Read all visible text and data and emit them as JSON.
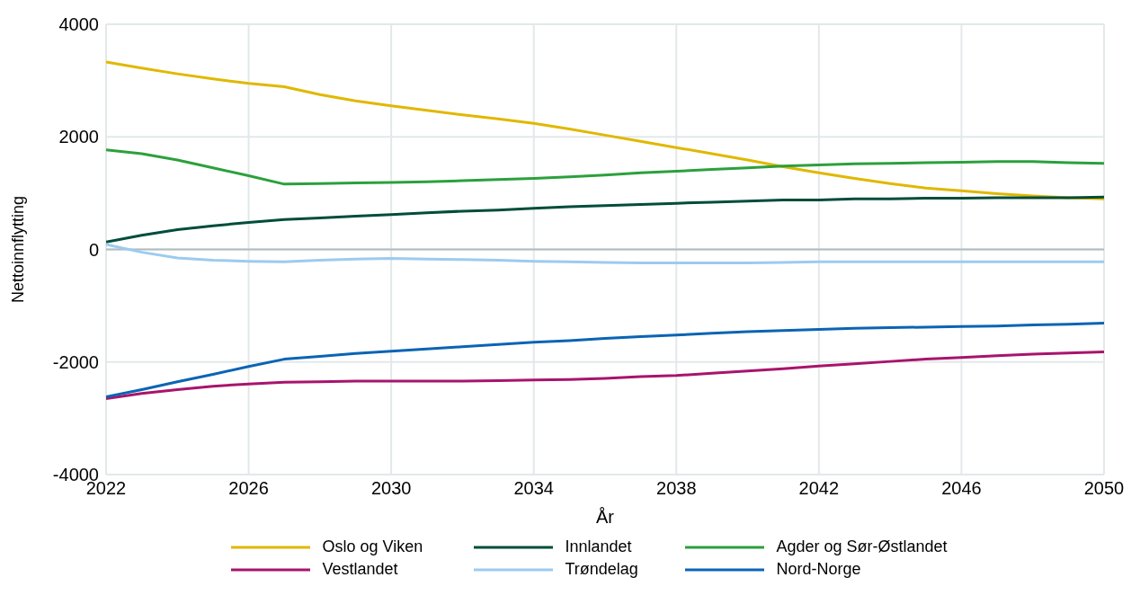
{
  "chart_data": {
    "type": "line",
    "xlabel": "År",
    "ylabel": "Nettoinnflytting",
    "x": [
      2022,
      2023,
      2024,
      2025,
      2026,
      2027,
      2028,
      2029,
      2030,
      2031,
      2032,
      2033,
      2034,
      2035,
      2036,
      2037,
      2038,
      2039,
      2040,
      2041,
      2042,
      2043,
      2044,
      2045,
      2046,
      2047,
      2048,
      2049,
      2050
    ],
    "xlim": [
      2022,
      2050
    ],
    "xticks": [
      2022,
      2026,
      2030,
      2034,
      2038,
      2042,
      2046,
      2050
    ],
    "ylim": [
      -4000,
      4000
    ],
    "yticks": [
      -4000,
      -2000,
      0,
      2000,
      4000
    ],
    "grid": true,
    "legend": "bottom",
    "marker": "none",
    "line_style": "solid",
    "ref_lines": [
      {
        "axis": "y",
        "value": 0,
        "color": "#b0bcc0"
      }
    ],
    "series": [
      {
        "name": "Oslo og Viken",
        "color": "#e0b800",
        "values": [
          3330,
          3220,
          3120,
          3030,
          2950,
          2890,
          2750,
          2640,
          2550,
          2470,
          2390,
          2320,
          2240,
          2140,
          2030,
          1920,
          1810,
          1700,
          1590,
          1470,
          1360,
          1260,
          1170,
          1090,
          1040,
          990,
          950,
          920,
          900
        ]
      },
      {
        "name": "Innlandet",
        "color": "#004d3a",
        "values": [
          130,
          250,
          350,
          420,
          480,
          530,
          560,
          590,
          620,
          650,
          680,
          700,
          730,
          760,
          780,
          800,
          820,
          840,
          860,
          880,
          880,
          900,
          900,
          910,
          910,
          920,
          920,
          920,
          930
        ]
      },
      {
        "name": "Agder og Sør-Østlandet",
        "color": "#2ca03c",
        "values": [
          1770,
          1700,
          1590,
          1450,
          1310,
          1160,
          1170,
          1180,
          1190,
          1200,
          1220,
          1240,
          1260,
          1290,
          1320,
          1360,
          1390,
          1420,
          1450,
          1480,
          1500,
          1520,
          1530,
          1540,
          1550,
          1560,
          1560,
          1540,
          1530
        ]
      },
      {
        "name": "Vestlandet",
        "color": "#a8146c",
        "values": [
          -2650,
          -2560,
          -2490,
          -2430,
          -2390,
          -2360,
          -2350,
          -2340,
          -2340,
          -2340,
          -2340,
          -2330,
          -2320,
          -2310,
          -2290,
          -2260,
          -2240,
          -2200,
          -2160,
          -2120,
          -2070,
          -2030,
          -1990,
          -1950,
          -1920,
          -1890,
          -1860,
          -1840,
          -1820
        ]
      },
      {
        "name": "Trøndelag",
        "color": "#9ccbf0",
        "values": [
          90,
          -50,
          -150,
          -190,
          -210,
          -220,
          -190,
          -170,
          -160,
          -170,
          -180,
          -190,
          -210,
          -220,
          -230,
          -240,
          -240,
          -240,
          -240,
          -230,
          -220,
          -220,
          -220,
          -220,
          -220,
          -220,
          -220,
          -220,
          -220
        ]
      },
      {
        "name": "Nord-Norge",
        "color": "#0a64b4",
        "values": [
          -2620,
          -2490,
          -2350,
          -2220,
          -2080,
          -1950,
          -1900,
          -1850,
          -1810,
          -1770,
          -1730,
          -1690,
          -1650,
          -1620,
          -1580,
          -1550,
          -1520,
          -1490,
          -1460,
          -1440,
          -1420,
          -1400,
          -1390,
          -1380,
          -1370,
          -1360,
          -1340,
          -1330,
          -1310
        ]
      }
    ]
  }
}
